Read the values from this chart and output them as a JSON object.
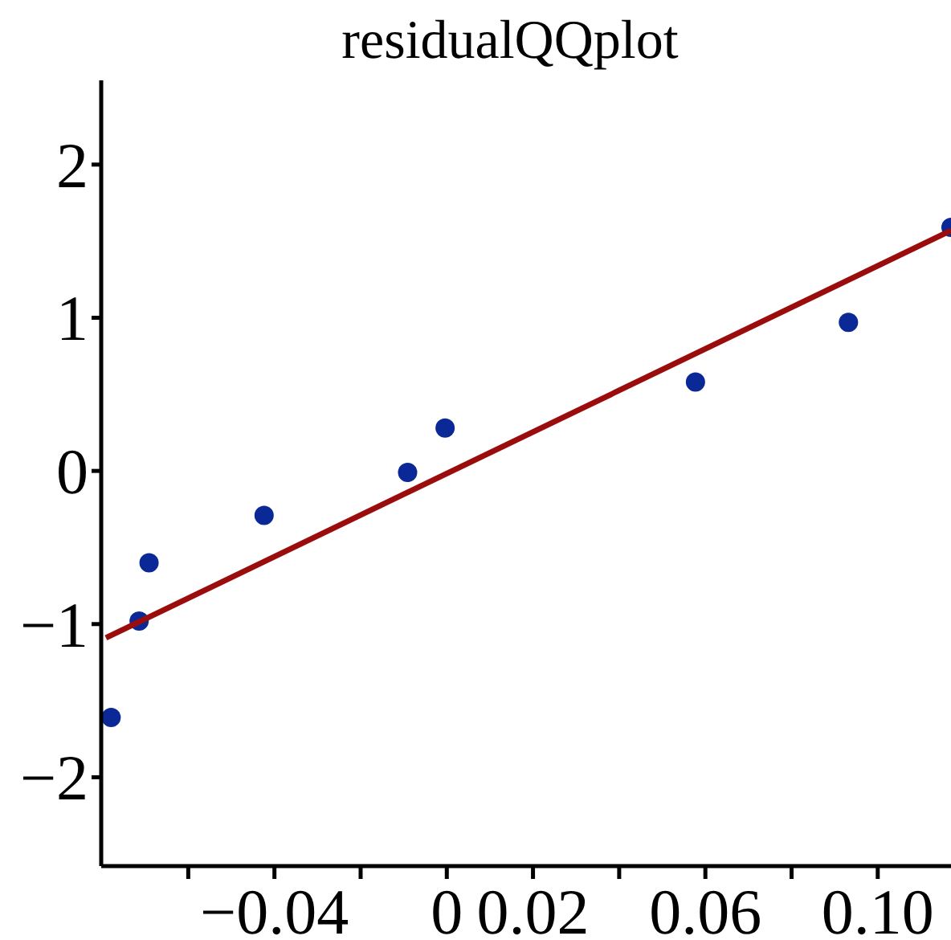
{
  "chart_data": {
    "type": "scatter",
    "title": "residualQQplot",
    "xlim": [
      -0.0802,
      0.117
    ],
    "ylim": [
      -2.58,
      2.55
    ],
    "xticks": [
      {
        "value": -0.06,
        "label": null
      },
      -0.04,
      {
        "value": -0.02,
        "label": null
      },
      0,
      0.02,
      {
        "value": 0.04,
        "label": null
      },
      0.06,
      {
        "value": 0.08,
        "label": null
      },
      {
        "value": 0.1,
        "label": "0.10"
      }
    ],
    "yticks": [
      -2,
      -1,
      0,
      1,
      2
    ],
    "grid": false,
    "marker": "circle",
    "series": [
      {
        "color": "#0a2896",
        "x": [
          -0.0779,
          -0.0714,
          -0.0691,
          -0.0424,
          -0.0091,
          -0.0004,
          0.0577,
          0.0932,
          0.117
        ],
        "values": [
          -1.61,
          -0.98,
          -0.6,
          -0.29,
          -0.01,
          0.28,
          0.58,
          0.97,
          1.59
        ]
      },
      {
        "type": "line",
        "color": "#9b0d0d",
        "marker": "none",
        "line_style": "solid",
        "x": [
          -0.0791,
          0.117
        ],
        "values": [
          -1.09,
          1.57
        ]
      }
    ]
  }
}
